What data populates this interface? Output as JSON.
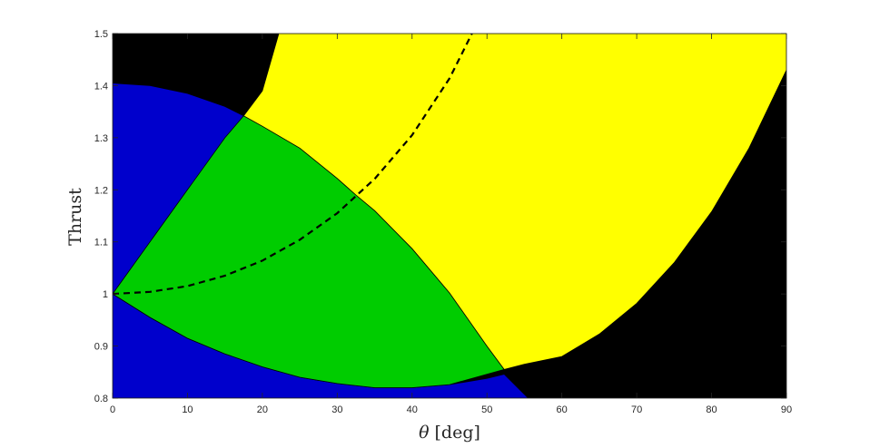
{
  "chart_data": {
    "type": "area",
    "xlabel_symbol": "θ",
    "xlabel_unit": "[deg]",
    "ylabel": "Thrust",
    "xlim": [
      0,
      90
    ],
    "ylim": [
      0.8,
      1.5
    ],
    "xticks": [
      0,
      10,
      20,
      30,
      40,
      50,
      60,
      70,
      80,
      90
    ],
    "yticks": [
      0.8,
      0.9,
      1,
      1.1,
      1.2,
      1.3,
      1.4,
      1.5
    ],
    "yticklabels": [
      "0.8",
      "0.9",
      "1",
      "1.1",
      "1.2",
      "1.3",
      "1.4",
      "1.5"
    ],
    "background_color": "#000000",
    "regions": [
      {
        "color": "#0000cc",
        "boundary": [
          [
            0,
            1.405
          ],
          [
            5,
            1.4
          ],
          [
            10,
            1.385
          ],
          [
            15,
            1.36
          ],
          [
            17.5,
            1.342
          ],
          [
            10,
            1.2
          ],
          [
            5,
            1.1
          ],
          [
            0,
            1.0
          ],
          [
            5,
            0.955
          ],
          [
            10,
            0.915
          ],
          [
            15,
            0.885
          ],
          [
            20,
            0.86
          ],
          [
            25,
            0.84
          ],
          [
            30,
            0.828
          ],
          [
            35,
            0.82
          ],
          [
            40,
            0.82
          ],
          [
            45,
            0.826
          ],
          [
            50,
            0.838
          ],
          [
            52.3,
            0.846
          ],
          [
            55.5,
            0.8
          ],
          [
            0,
            0.8
          ]
        ]
      },
      {
        "color": "#00cc00",
        "boundary": [
          [
            0,
            1.0
          ],
          [
            5,
            1.1
          ],
          [
            10,
            1.2
          ],
          [
            15,
            1.3
          ],
          [
            17.5,
            1.342
          ],
          [
            20,
            1.322
          ],
          [
            25,
            1.28
          ],
          [
            30,
            1.222
          ],
          [
            32.5,
            1.19
          ],
          [
            35,
            1.16
          ],
          [
            40,
            1.087
          ],
          [
            45,
            1.002
          ],
          [
            50,
            0.9
          ],
          [
            52.3,
            0.855
          ],
          [
            45,
            0.826
          ],
          [
            40,
            0.82
          ],
          [
            35,
            0.82
          ],
          [
            30,
            0.828
          ],
          [
            25,
            0.84
          ],
          [
            20,
            0.86
          ],
          [
            15,
            0.885
          ],
          [
            10,
            0.915
          ],
          [
            5,
            0.955
          ]
        ]
      },
      {
        "color": "#ffff00",
        "boundary": [
          [
            17.5,
            1.342
          ],
          [
            20,
            1.39
          ],
          [
            22.2,
            1.5
          ],
          [
            90,
            1.5
          ],
          [
            90,
            1.43
          ],
          [
            85,
            1.28
          ],
          [
            80,
            1.158
          ],
          [
            75,
            1.06
          ],
          [
            70,
            0.982
          ],
          [
            65,
            0.923
          ],
          [
            60,
            0.88
          ],
          [
            55,
            0.865
          ],
          [
            52.3,
            0.855
          ],
          [
            50,
            0.9
          ],
          [
            45,
            1.002
          ],
          [
            40,
            1.087
          ],
          [
            35,
            1.16
          ],
          [
            32.5,
            1.19
          ],
          [
            30,
            1.222
          ],
          [
            25,
            1.28
          ],
          [
            20,
            1.322
          ]
        ]
      }
    ],
    "series": [
      {
        "style": "dashed",
        "color": "#000000",
        "x": [
          0,
          5,
          10,
          15,
          20,
          25,
          30,
          35,
          40,
          45,
          48
        ],
        "y": [
          1.0,
          1.004,
          1.015,
          1.035,
          1.064,
          1.104,
          1.155,
          1.221,
          1.305,
          1.414,
          1.5
        ]
      }
    ]
  }
}
